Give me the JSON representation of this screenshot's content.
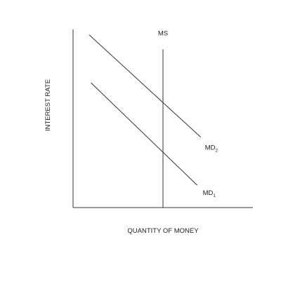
{
  "chart_data": {
    "type": "line",
    "title": "",
    "xlabel": "QUANTITY OF MONEY",
    "ylabel": "INTEREST RATE",
    "grid": false,
    "legend": "none",
    "series": [
      {
        "name": "MS",
        "label_main": "MS",
        "label_sub": "",
        "points": [
          [
            0.5,
            0.0
          ],
          [
            0.5,
            0.99
          ]
        ]
      },
      {
        "name": "MD2",
        "label_main": "MD",
        "label_sub": "2",
        "points": [
          [
            0.09,
            1.08
          ],
          [
            0.71,
            0.44
          ]
        ]
      },
      {
        "name": "MD1",
        "label_main": "MD",
        "label_sub": "1",
        "points": [
          [
            0.1,
            0.78
          ],
          [
            0.69,
            0.14
          ]
        ]
      }
    ]
  },
  "colors": {
    "axis": "#333333",
    "curve": "#333333",
    "text": "#222222"
  }
}
